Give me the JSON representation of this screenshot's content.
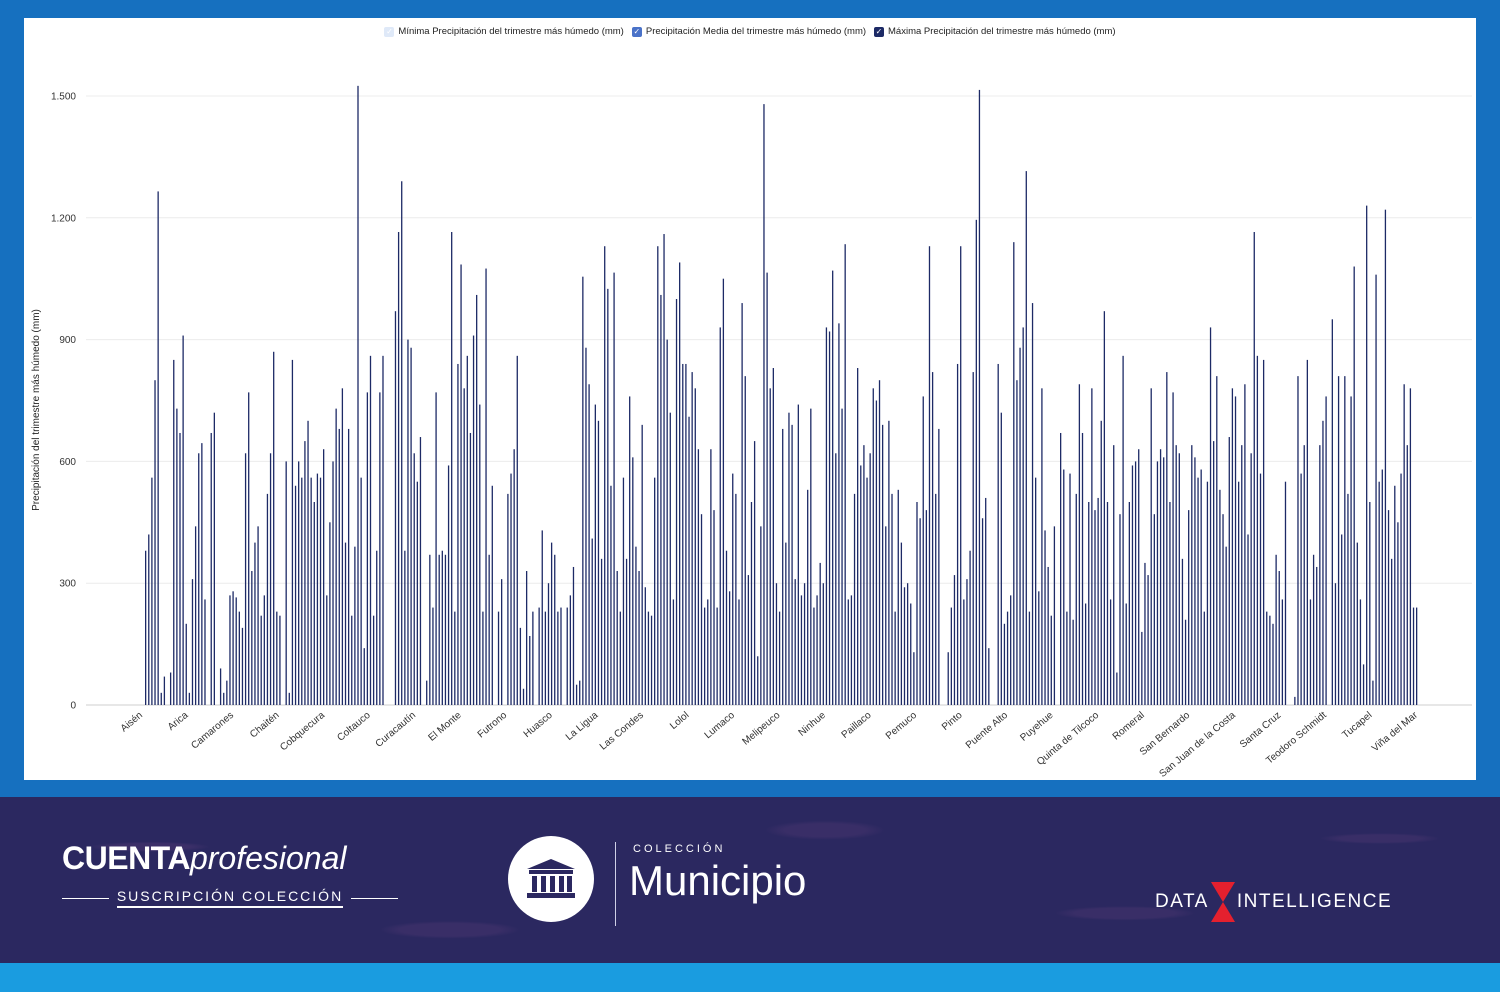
{
  "legend": [
    {
      "label": "Mínima Precipitación del trimestre más húmedo (mm)",
      "color": "#dfe9f8"
    },
    {
      "label": "Precipitación Media del trimestre más húmedo (mm)",
      "color": "#4a72c8"
    },
    {
      "label": "Máxima Precipitación del trimestre más húmedo (mm)",
      "color": "#1d2a66"
    }
  ],
  "chart_data": {
    "type": "bar",
    "ylabel": "Precipitación del trimestre más húmedo (mm)",
    "ylim": [
      0,
      1500
    ],
    "yticks": [
      0,
      300,
      600,
      900,
      1200,
      1500
    ],
    "ytick_labels": [
      "0",
      "300",
      "600",
      "900",
      "1.200",
      "1.500"
    ],
    "grid": true,
    "legend_position": "top",
    "series_names": [
      "Mínima Precipitación del trimestre más húmedo (mm)",
      "Precipitación Media del trimestre más húmedo (mm)",
      "Máxima Precipitación del trimestre más húmedo (mm)"
    ],
    "visible_category_labels": [
      "Aisén",
      "Arica",
      "Camarones",
      "Chaitén",
      "Cobquecura",
      "Coltauco",
      "Curacautín",
      "El Monte",
      "Futrono",
      "Huasco",
      "La Ligua",
      "Las Condes",
      "Lolol",
      "Lumaco",
      "Melipeuco",
      "Ninhue",
      "Paillaco",
      "Pemuco",
      "Pinto",
      "Puente Alto",
      "Puyehue",
      "Quinta de Tilcoco",
      "Romeral",
      "San Bernardo",
      "San Juan de la Costa",
      "Santa Cruz",
      "Teodoro Schmidt",
      "Tucapel",
      "Viña del Mar"
    ],
    "max_values_sampled": [
      380,
      420,
      560,
      800,
      1265,
      30,
      70,
      0,
      80,
      850,
      730,
      670,
      910,
      200,
      30,
      310,
      440,
      620,
      645,
      260,
      0,
      670,
      720,
      0,
      90,
      30,
      60,
      270,
      280,
      265,
      230,
      190,
      620,
      770,
      330,
      400,
      440,
      220,
      270,
      520,
      620,
      870,
      230,
      220,
      0,
      600,
      30,
      850,
      540,
      600,
      560,
      650,
      700,
      560,
      500,
      570,
      560,
      630,
      270,
      450,
      600,
      730,
      680,
      780,
      400,
      680,
      220,
      390,
      1525,
      560,
      140,
      770,
      860,
      220,
      380,
      770,
      860,
      0,
      0,
      0,
      970,
      1165,
      1290,
      380,
      900,
      880,
      620,
      550,
      660,
      0,
      60,
      370,
      240,
      770,
      370,
      380,
      370,
      590,
      1165,
      230,
      840,
      1085,
      780,
      860,
      670,
      910,
      1010,
      740,
      230,
      1075,
      370,
      540,
      0,
      230,
      310,
      0,
      520,
      570,
      630,
      860,
      190,
      40,
      330,
      170,
      230,
      0,
      240,
      430,
      230,
      300,
      400,
      370,
      230,
      240,
      0,
      240,
      270,
      340,
      50,
      60,
      1055,
      880,
      790,
      410,
      740,
      700,
      360,
      1130,
      1025,
      540,
      1065,
      330,
      230,
      560,
      360,
      760,
      610,
      390,
      330,
      690,
      290,
      230,
      220,
      560,
      1130,
      1010,
      1160,
      900,
      720,
      260,
      1000,
      1090,
      840,
      840,
      710,
      820,
      780,
      630,
      470,
      240,
      260,
      630,
      480,
      240,
      930,
      1050,
      380,
      280,
      570,
      520,
      260,
      990,
      810,
      320,
      500,
      650,
      120,
      440,
      1480,
      1065,
      780,
      830,
      300,
      230,
      680,
      400,
      720,
      690,
      310,
      740,
      270,
      300,
      530,
      730,
      240,
      270,
      350,
      300,
      930,
      920,
      1070,
      620,
      940,
      730,
      1135,
      260,
      270,
      520,
      830,
      590,
      640,
      560,
      620,
      780,
      750,
      800,
      690,
      440,
      700,
      520,
      230,
      530,
      400,
      290,
      300,
      250,
      130,
      500,
      460,
      760,
      480,
      1130,
      820,
      520,
      680,
      0,
      0,
      130,
      240,
      320,
      840,
      1130,
      260,
      310,
      380,
      820,
      1195,
      1515,
      460,
      510,
      140,
      0,
      0,
      840,
      720,
      200,
      230,
      270,
      1140,
      800,
      880,
      930,
      1315,
      230,
      990,
      560,
      280,
      780,
      430,
      340,
      220,
      440,
      0,
      670,
      580,
      230,
      570,
      210,
      520,
      790,
      670,
      250,
      500,
      780,
      480,
      510,
      700,
      970,
      500,
      260,
      640,
      80,
      470,
      860,
      250,
      500,
      590,
      600,
      630,
      180,
      350,
      320,
      780,
      470,
      600,
      630,
      610,
      820,
      500,
      770,
      640,
      620,
      360,
      210,
      480,
      640,
      610,
      560,
      580,
      230,
      550,
      930,
      650,
      810,
      530,
      470,
      390,
      660,
      780,
      760,
      550,
      640,
      790,
      420,
      620,
      1165,
      860,
      570,
      850,
      230,
      220,
      200,
      370,
      330,
      260,
      550,
      0,
      0,
      20,
      810,
      570,
      640,
      850,
      260,
      370,
      340,
      640,
      700,
      760,
      0,
      950,
      300,
      810,
      420,
      810,
      520,
      760,
      1080,
      400,
      260,
      100,
      1230,
      500,
      60,
      1060,
      550,
      580,
      1220,
      480,
      360,
      540,
      450,
      570,
      790,
      640,
      780,
      240,
      240
    ]
  },
  "footer": {
    "brand_bold": "CUENTA",
    "brand_italic": "profesional",
    "brand_sub": "SUSCRIPCIÓN COLECCIÓN",
    "collection_label": "COLECCIÓN",
    "collection_name": "Municipio",
    "data_left": "DATA",
    "data_right": "INTELLIGENCE"
  },
  "colors": {
    "frame_blue": "#1670bf",
    "footer_purple": "#2b2860",
    "bottom_strip": "#1a9ce0",
    "bar_max": "#1d2a66",
    "bar_mean": "#4a72c8",
    "bar_min": "#dfe9f8",
    "accent_red": "#e4202e"
  }
}
